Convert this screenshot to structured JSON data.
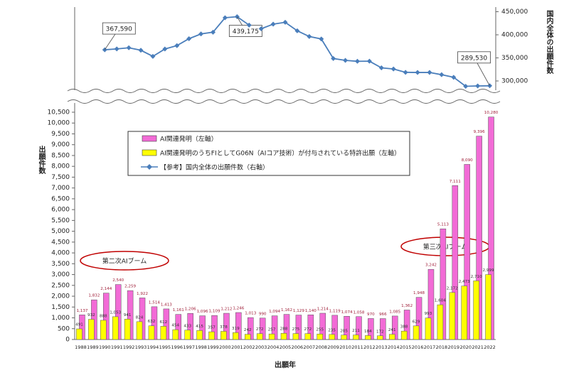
{
  "chart_data": {
    "type": "bar",
    "categories": [
      "1988",
      "1989",
      "1990",
      "1991",
      "1992",
      "1993",
      "1994",
      "1995",
      "1996",
      "1997",
      "1998",
      "1999",
      "2000",
      "2001",
      "2002",
      "2003",
      "2004",
      "2005",
      "2006",
      "2007",
      "2008",
      "2009",
      "2010",
      "2011",
      "2012",
      "2013",
      "2014",
      "2015",
      "2016",
      "2017",
      "2018",
      "2019",
      "2020",
      "2021",
      "2022"
    ],
    "series": [
      {
        "name": "AI関連発明（左軸）",
        "color": "#f26bd6",
        "type": "bar",
        "values": [
          1137,
          1832,
          2144,
          2540,
          2259,
          1922,
          1514,
          1413,
          1161,
          1206,
          1096,
          1109,
          1212,
          1246,
          1013,
          990,
          1094,
          1162,
          1129,
          1140,
          1214,
          1119,
          1074,
          1058,
          970,
          966,
          1085,
          1362,
          1948,
          3242,
          5113,
          7111,
          8090,
          9396,
          10280
        ],
        "value_labels": [
          "1,137",
          "1,832",
          "2,144",
          "2,540",
          "2,259",
          "1,922",
          "1,514",
          "1,413",
          "1,161",
          "1,206",
          "1,096",
          "1,109",
          "1,212",
          "1,246",
          "1,013",
          "990",
          "1,094",
          "1,162",
          "1,129",
          "1,140",
          "1,214",
          "1,119",
          "1,074",
          "1,058",
          "970",
          "966",
          "1,085",
          "1,362",
          "1,948",
          "3,242",
          "5,113",
          "7,111",
          "8,090",
          "9,396",
          "10,280"
        ]
      },
      {
        "name": "AI関連発明のうちFIとしてG06N（AIコア技術）が付与されている特許出願（左軸）",
        "color": "#ffff00",
        "type": "bar",
        "values": [
          491,
          932,
          888,
          1053,
          941,
          824,
          632,
          612,
          454,
          433,
          415,
          357,
          378,
          319,
          242,
          272,
          257,
          288,
          275,
          272,
          255,
          235,
          205,
          211,
          184,
          172,
          241,
          388,
          629,
          993,
          1604,
          2172,
          2473,
          2710,
          2999
        ],
        "value_labels": [
          "491",
          "932",
          "888",
          "1,053",
          "941",
          "824",
          "632",
          "612",
          "454",
          "433",
          "415",
          "357",
          "378",
          "319",
          "242",
          "272",
          "257",
          "288",
          "275",
          "272",
          "255",
          "235",
          "205",
          "211",
          "184",
          "172",
          "241",
          "388",
          "629",
          "993",
          "1,604",
          "2,172",
          "2,473",
          "2,710",
          "2,999"
        ]
      },
      {
        "name": "【参考】国内全体の出願件数（右軸）",
        "color": "#4a7ebb",
        "type": "line",
        "axis": "y2",
        "values": [
          null,
          null,
          367590,
          369396,
          371894,
          366486,
          353301,
          369214,
          376615,
          391572,
          401932,
          405655,
          436865,
          439175,
          421044,
          413092,
          423081,
          427078,
          408674,
          396291,
          391002,
          348596,
          344598,
          342610,
          342796,
          328436,
          325989,
          318721,
          318381,
          318481,
          313567,
          307969,
          288472,
          289200,
          289530
        ],
        "value_labels": [
          null,
          null,
          "367,590",
          null,
          null,
          null,
          null,
          null,
          null,
          null,
          null,
          null,
          null,
          "439,175",
          null,
          null,
          null,
          null,
          null,
          null,
          null,
          null,
          null,
          null,
          null,
          null,
          null,
          null,
          null,
          null,
          null,
          null,
          null,
          null,
          "289,530"
        ]
      }
    ],
    "ylim": [
      0,
      10500
    ],
    "yticks": [
      0,
      500,
      {
        "value": 1000,
        "label": "1,000"
      },
      {
        "value": 1500,
        "label": "1,500"
      },
      {
        "value": 2000,
        "label": "2,000"
      },
      {
        "value": 2500,
        "label": "2,500"
      },
      {
        "value": 3000,
        "label": "3,000"
      },
      {
        "value": 3500,
        "label": "3,500"
      },
      {
        "value": 4000,
        "label": "4,000"
      },
      {
        "value": 4500,
        "label": "4,500"
      },
      {
        "value": 5000,
        "label": "5,000"
      },
      {
        "value": 5500,
        "label": "5,500"
      },
      {
        "value": 6000,
        "label": "6,000"
      },
      {
        "value": 6500,
        "label": "6,500"
      },
      {
        "value": 7000,
        "label": "7,000"
      },
      {
        "value": 7500,
        "label": "7,500"
      },
      {
        "value": 8000,
        "label": "8,000"
      },
      {
        "value": 8500,
        "label": "8,500"
      },
      {
        "value": 9000,
        "label": "9,000"
      },
      {
        "value": 9500,
        "label": "9,500"
      },
      {
        "value": 10000,
        "label": "10,000"
      },
      {
        "value": 10500,
        "label": "10,500"
      }
    ],
    "y2lim": [
      280000,
      460000
    ],
    "y2ticks": [
      {
        "value": 300000,
        "label": "300,000"
      },
      {
        "value": 350000,
        "label": "350,000"
      },
      {
        "value": 400000,
        "label": "400,000"
      },
      {
        "value": 450000,
        "label": "450,000"
      }
    ],
    "xlabel": "出願年",
    "ylabel": "出願件数",
    "y2label": "国内全体の出願件数",
    "annotations": [
      "第二次AIブーム",
      "第三次AIブーム"
    ]
  }
}
